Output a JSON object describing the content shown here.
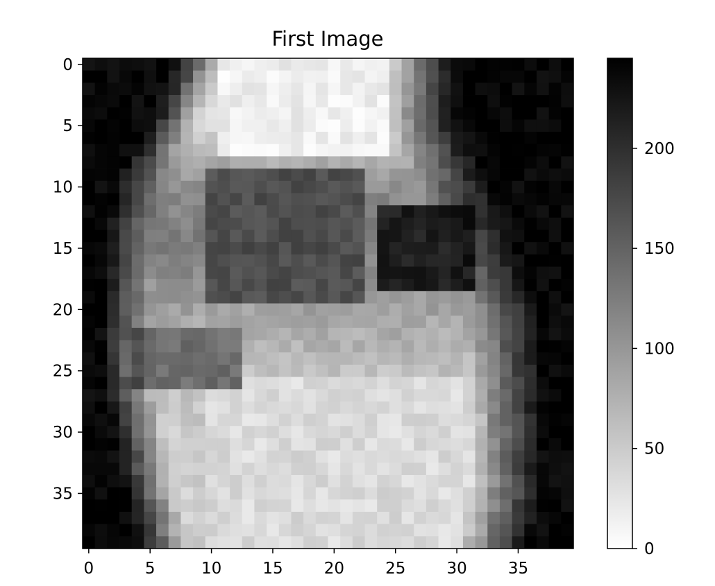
{
  "chart_data": {
    "type": "heatmap",
    "title": "First Image",
    "xlabel": "",
    "ylabel": "",
    "rows": 40,
    "cols": 40,
    "x_ticks": [
      0,
      5,
      10,
      15,
      20,
      25,
      30,
      35
    ],
    "y_ticks": [
      0,
      5,
      10,
      15,
      20,
      25,
      30,
      35
    ],
    "xlim": [
      -0.5,
      39.5
    ],
    "ylim": [
      39.5,
      -0.5
    ],
    "y_inverted": true,
    "colormap": "gray_r",
    "colorbar": {
      "vmin": 0,
      "vmax": 245,
      "ticks": [
        0,
        50,
        100,
        150,
        200
      ],
      "min_color": "#ffffff",
      "max_color": "#000000"
    },
    "row_profiles": [
      {
        "row": 0,
        "dark_left_end": 7,
        "dark_right_start": 30,
        "interior_intensity": 20
      },
      {
        "row": 5,
        "dark_left_end": 5,
        "dark_right_start": 30,
        "interior_intensity": 35
      },
      {
        "row": 10,
        "dark_left_end": 2,
        "dark_right_start": 33,
        "interior_intensity": 110
      },
      {
        "row": 15,
        "dark_left_end": 1,
        "dark_right_start": 35,
        "interior_intensity": 125
      },
      {
        "row": 20,
        "dark_left_end": 1,
        "dark_right_start": 37,
        "interior_intensity": 90
      },
      {
        "row": 25,
        "dark_left_end": 1,
        "dark_right_start": 37,
        "interior_intensity": 60
      },
      {
        "row": 30,
        "dark_left_end": 2,
        "dark_right_start": 37,
        "interior_intensity": 50
      },
      {
        "row": 35,
        "dark_left_end": 3,
        "dark_right_start": 37,
        "interior_intensity": 45
      },
      {
        "row": 39,
        "dark_left_end": 4,
        "dark_right_start": 36,
        "interior_intensity": 50
      }
    ],
    "dark_regions": [
      {
        "row_range": [
          9,
          19
        ],
        "col_range": [
          10,
          22
        ],
        "intensity": 170
      },
      {
        "row_range": [
          12,
          18
        ],
        "col_range": [
          24,
          31
        ],
        "intensity": 215
      },
      {
        "row_range": [
          22,
          26
        ],
        "col_range": [
          4,
          12
        ],
        "intensity": 140
      }
    ],
    "bright_regions": [
      {
        "row_range": [
          0,
          7
        ],
        "col_range": [
          11,
          24
        ],
        "intensity": 15
      },
      {
        "row_range": [
          26,
          39
        ],
        "col_range": [
          10,
          32
        ],
        "intensity": 35
      }
    ]
  }
}
